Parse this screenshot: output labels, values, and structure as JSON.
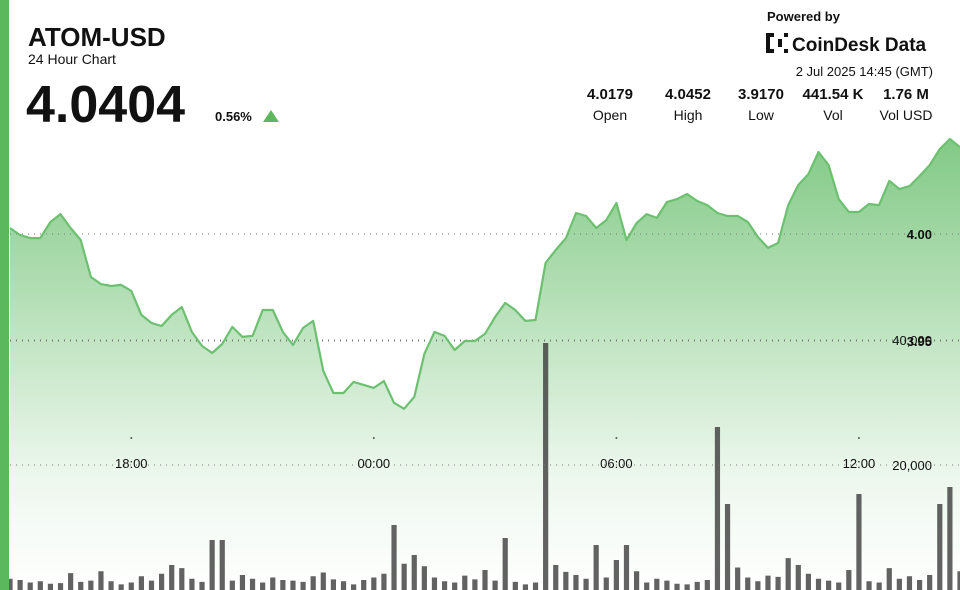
{
  "header": {
    "title": "ATOM-USD",
    "subtitle": "24 Hour Chart",
    "price": "4.0404",
    "change": "0.56%",
    "powered": "Powered by",
    "brand": "CoinDesk Data",
    "timestamp": "2 Jul 2025 14:45 (GMT)"
  },
  "stats": [
    {
      "value": "4.0179",
      "label": "Open"
    },
    {
      "value": "4.0452",
      "label": "High"
    },
    {
      "value": "3.9170",
      "label": "Low"
    },
    {
      "value": "441.54 K",
      "label": "Vol"
    },
    {
      "value": "1.76 M",
      "label": "Vol USD"
    }
  ],
  "chart_data": {
    "type": "line",
    "categories": [
      null,
      null,
      null,
      null,
      null,
      null,
      null,
      null,
      null,
      null,
      null,
      null,
      "18:00",
      null,
      null,
      null,
      null,
      null,
      null,
      null,
      null,
      null,
      null,
      null,
      null,
      null,
      null,
      null,
      null,
      null,
      null,
      null,
      null,
      null,
      null,
      null,
      "00:00",
      null,
      null,
      null,
      null,
      null,
      null,
      null,
      null,
      null,
      null,
      null,
      null,
      null,
      null,
      null,
      null,
      null,
      null,
      null,
      null,
      null,
      null,
      null,
      "06:00",
      null,
      null,
      null,
      null,
      null,
      null,
      null,
      null,
      null,
      null,
      null,
      null,
      null,
      null,
      null,
      null,
      null,
      null,
      null,
      null,
      null,
      null,
      null,
      "12:00",
      null,
      null,
      null,
      null,
      null,
      null,
      null,
      null,
      null,
      null
    ],
    "series": [
      {
        "color": "#6cc070",
        "values": [
          4.0028,
          3.9995,
          3.9981,
          3.9981,
          4.0056,
          4.0093,
          4.0028,
          3.9972,
          3.9799,
          3.9766,
          3.9757,
          3.9762,
          3.9734,
          3.9622,
          3.9584,
          3.957,
          3.9622,
          3.9659,
          3.9542,
          3.9477,
          3.9444,
          3.9486,
          3.9566,
          3.9519,
          3.9524,
          3.9645,
          3.9645,
          3.9542,
          3.9482,
          3.9561,
          3.9594,
          3.936,
          3.9257,
          3.9257,
          3.9309,
          3.9295,
          3.9281,
          3.9313,
          3.9211,
          3.9183,
          3.9239,
          3.944,
          3.9542,
          3.9524,
          3.9458,
          3.95,
          3.95,
          3.9533,
          3.9612,
          3.9678,
          3.9645,
          3.9594,
          3.9598,
          3.9865,
          3.9925,
          3.9981,
          4.0098,
          4.0084,
          4.0028,
          4.0065,
          4.0145,
          3.9972,
          4.0051,
          4.0093,
          4.0075,
          4.0149,
          4.0163,
          4.0187,
          4.0154,
          4.0135,
          4.0098,
          4.0084,
          4.0084,
          4.0056,
          3.9986,
          3.9935,
          3.9958,
          4.0135,
          4.0229,
          4.028,
          4.0383,
          4.0322,
          4.0163,
          4.0103,
          4.0103,
          4.014,
          4.0135,
          4.0248,
          4.021,
          4.0224,
          4.0271,
          4.0322,
          4.0397,
          4.0444,
          4.0406
        ]
      },
      {
        "type": "bar",
        "axis": "y2",
        "color": "#3f3f3f",
        "values": [
          1800,
          1600,
          1200,
          1400,
          1000,
          1100,
          2700,
          1300,
          1500,
          3000,
          1400,
          900,
          1200,
          2200,
          1500,
          2600,
          4000,
          3500,
          1800,
          1300,
          8000,
          8000,
          1500,
          2400,
          1800,
          1200,
          2000,
          1600,
          1500,
          1300,
          2200,
          2800,
          1700,
          1400,
          900,
          1600,
          2000,
          2600,
          10400,
          4200,
          5600,
          3800,
          2000,
          1400,
          1200,
          2300,
          1700,
          3200,
          1500,
          8320,
          1300,
          900,
          1200,
          39520,
          4000,
          2900,
          2400,
          1800,
          7200,
          2000,
          4800,
          7200,
          3000,
          1200,
          1800,
          1500,
          1000,
          900,
          1300,
          1600,
          26080,
          13760,
          3600,
          2000,
          1400,
          2300,
          2100,
          5100,
          4000,
          2600,
          1800,
          1500,
          1200,
          3200,
          15360,
          1400,
          1200,
          3500,
          1800,
          2200,
          1600,
          2400,
          13760,
          16480,
          3000
        ]
      }
    ],
    "ylim": [
      3.85,
      4.1
    ],
    "yticks": [
      {
        "value": 4,
        "label": "4.00"
      },
      {
        "value": 3.95,
        "label": "3.95"
      }
    ],
    "y2lim": [
      0,
      80000
    ],
    "y2ticks": [
      {
        "value": 20000,
        "label": "20,000"
      },
      {
        "value": 40000,
        "label": "40,000"
      }
    ],
    "grid": true
  }
}
